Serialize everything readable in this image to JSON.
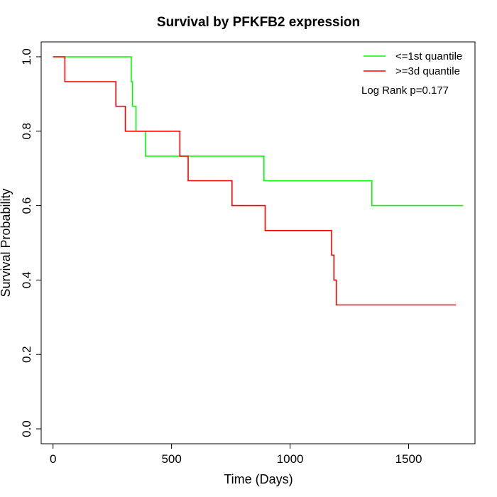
{
  "chart_data": {
    "type": "line",
    "title": "Survival by PFKFB2 expression",
    "xlabel": "Time (Days)",
    "ylabel": "Survival Probability",
    "xlim": [
      -50,
      1780
    ],
    "ylim": [
      -0.04,
      1.04
    ],
    "x_ticks": [
      0,
      500,
      1000,
      1500
    ],
    "y_ticks": [
      0.0,
      0.2,
      0.4,
      0.6,
      0.8,
      1.0
    ],
    "x_tick_labels": [
      "0",
      "500",
      "1000",
      "1500"
    ],
    "y_tick_labels": [
      "0.0",
      "0.2",
      "0.4",
      "0.6",
      "0.8",
      "1.0"
    ],
    "grid": false,
    "legend_position": "top-right",
    "annotation": "Log Rank p=0.177",
    "series": [
      {
        "name": "<=1st quantile",
        "color": "#00ff00",
        "step": true,
        "points": [
          [
            0,
            1.0
          ],
          [
            330,
            1.0
          ],
          [
            330,
            0.933
          ],
          [
            335,
            0.933
          ],
          [
            335,
            0.867
          ],
          [
            350,
            0.867
          ],
          [
            350,
            0.8
          ],
          [
            390,
            0.8
          ],
          [
            390,
            0.733
          ],
          [
            890,
            0.733
          ],
          [
            890,
            0.667
          ],
          [
            1345,
            0.667
          ],
          [
            1345,
            0.6
          ],
          [
            1730,
            0.6
          ]
        ]
      },
      {
        "name": ">=3d quantile",
        "color": "#ff0000",
        "step": true,
        "points": [
          [
            0,
            1.0
          ],
          [
            50,
            1.0
          ],
          [
            50,
            0.933
          ],
          [
            265,
            0.933
          ],
          [
            265,
            0.867
          ],
          [
            305,
            0.867
          ],
          [
            305,
            0.8
          ],
          [
            535,
            0.8
          ],
          [
            535,
            0.733
          ],
          [
            570,
            0.733
          ],
          [
            570,
            0.667
          ],
          [
            755,
            0.667
          ],
          [
            755,
            0.6
          ],
          [
            895,
            0.6
          ],
          [
            895,
            0.533
          ],
          [
            1175,
            0.533
          ],
          [
            1175,
            0.467
          ],
          [
            1185,
            0.467
          ],
          [
            1185,
            0.4
          ],
          [
            1195,
            0.4
          ],
          [
            1195,
            0.333
          ],
          [
            1700,
            0.333
          ]
        ]
      }
    ]
  }
}
